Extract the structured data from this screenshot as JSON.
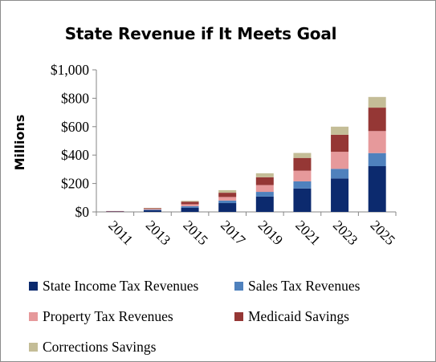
{
  "chart_data": {
    "type": "bar",
    "stacked": true,
    "title": "State Revenue if It Meets Goal",
    "xlabel": "",
    "ylabel": "Millions",
    "categories": [
      "2011",
      "2013",
      "2015",
      "2017",
      "2019",
      "2021",
      "2023",
      "2025"
    ],
    "ylim": [
      0,
      1000
    ],
    "yticks": [
      0,
      200,
      400,
      600,
      800,
      1000
    ],
    "ytick_labels": [
      "$0",
      "$200",
      "$400",
      "$600",
      "$800",
      "$1,000"
    ],
    "grid": false,
    "legend_position": "bottom",
    "series": [
      {
        "name": "State Income Tax Revenues",
        "color": "#0c2a6e",
        "values": [
          3,
          12,
          30,
          62,
          108,
          165,
          235,
          322
        ]
      },
      {
        "name": "Sales Tax Revenues",
        "color": "#4f81bd",
        "values": [
          1,
          4,
          10,
          18,
          33,
          50,
          68,
          92
        ]
      },
      {
        "name": "Property Tax Revenues",
        "color": "#e6999b",
        "values": [
          1,
          5,
          14,
          25,
          48,
          75,
          120,
          155
        ]
      },
      {
        "name": "Medicaid Savings",
        "color": "#953735",
        "values": [
          1,
          5,
          18,
          30,
          55,
          90,
          120,
          165
        ]
      },
      {
        "name": "Corrections Savings",
        "color": "#c4bd97",
        "values": [
          0,
          2,
          6,
          18,
          28,
          35,
          57,
          75
        ]
      }
    ]
  }
}
